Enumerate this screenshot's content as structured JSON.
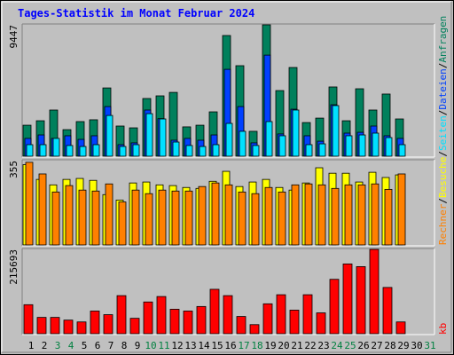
{
  "chart_data": {
    "type": "bar",
    "title": "Tages-Statistik im Monat Februar 2024",
    "categories": [
      "1",
      "2",
      "3",
      "4",
      "5",
      "6",
      "7",
      "8",
      "9",
      "10",
      "11",
      "12",
      "13",
      "14",
      "15",
      "16",
      "17",
      "18",
      "19",
      "20",
      "21",
      "22",
      "23",
      "24",
      "25",
      "26",
      "27",
      "28",
      "29",
      "30",
      "31"
    ],
    "category_colors": [
      "#000000",
      "#000000",
      "#008040",
      "#008040",
      "#000000",
      "#000000",
      "#000000",
      "#000000",
      "#000000",
      "#008040",
      "#008040",
      "#000000",
      "#000000",
      "#000000",
      "#000000",
      "#000000",
      "#008040",
      "#008040",
      "#000000",
      "#000000",
      "#000000",
      "#000000",
      "#000000",
      "#008040",
      "#008040",
      "#000000",
      "#000000",
      "#000000",
      "#000000",
      "#000000",
      "#008040"
    ],
    "legend_separator": "/",
    "panels": [
      {
        "ylim": [
          0,
          9447
        ],
        "yticks": [
          9447
        ],
        "series": [
          {
            "name": "Anfragen",
            "color": "#00805C",
            "values": [
              2230,
              2550,
              3320,
              1910,
              2490,
              2620,
              4910,
              2170,
              2040,
              4150,
              4340,
              4590,
              2110,
              2230,
              3190,
              8680,
              6510,
              1790,
              9447,
              4720,
              6380,
              2420,
              2740,
              4980,
              2550,
              4850,
              3320,
              4470,
              2680,
              null,
              null
            ]
          },
          {
            "name": "Dateien",
            "color": "#0040FF",
            "values": [
              1280,
              1530,
              1280,
              1470,
              1210,
              1470,
              3570,
              830,
              960,
              3320,
              2700,
              1150,
              1280,
              1150,
              1530,
              6250,
              3570,
              960,
              7270,
              1600,
              3380,
              1470,
              1080,
              3700,
              1660,
              1720,
              2170,
              1470,
              1280,
              null,
              null
            ]
          },
          {
            "name": "Seiten",
            "color": "#00E0FF",
            "values": [
              830,
              830,
              1280,
              770,
              700,
              830,
              2930,
              700,
              830,
              3060,
              2680,
              1020,
              770,
              700,
              830,
              2360,
              1790,
              770,
              2490,
              1470,
              3320,
              830,
              890,
              3640,
              1470,
              1530,
              1660,
              1340,
              830,
              null,
              null
            ]
          }
        ]
      },
      {
        "ylim": [
          0,
          355
        ],
        "yticks": [
          355
        ],
        "series": [
          {
            "name": "Besuche",
            "color": "#FFFF00",
            "values": [
              338,
              276,
              253,
              276,
              280,
              272,
              212,
              189,
              261,
              265,
              253,
              250,
              242,
              238,
              268,
              310,
              246,
              265,
              276,
              242,
              231,
              261,
              325,
              302,
              302,
              265,
              306,
              284,
              295,
              null,
              null
            ]
          },
          {
            "name": "Rechner",
            "color": "#FF8000",
            "values": [
              348,
              299,
              223,
              250,
              231,
              227,
              257,
              181,
              231,
              216,
              231,
              227,
              227,
              246,
              261,
              253,
              223,
              216,
              242,
              223,
              253,
              257,
              253,
              238,
              253,
              253,
              257,
              234,
              299,
              null,
              null
            ]
          }
        ]
      },
      {
        "ylim": [
          0,
          215693
        ],
        "yticks": [
          215693
        ],
        "series": [
          {
            "name": "kb",
            "color": "#FF0000",
            "values": [
              74200,
              41700,
              41700,
              34800,
              30100,
              58000,
              48700,
              97400,
              39400,
              81200,
              95100,
              62600,
              58000,
              69600,
              113600,
              97400,
              44100,
              23200,
              76500,
              99700,
              60300,
              99700,
              53300,
              139100,
              178500,
              171600,
              215693,
              118300,
              30100,
              null,
              null
            ]
          }
        ]
      }
    ]
  }
}
